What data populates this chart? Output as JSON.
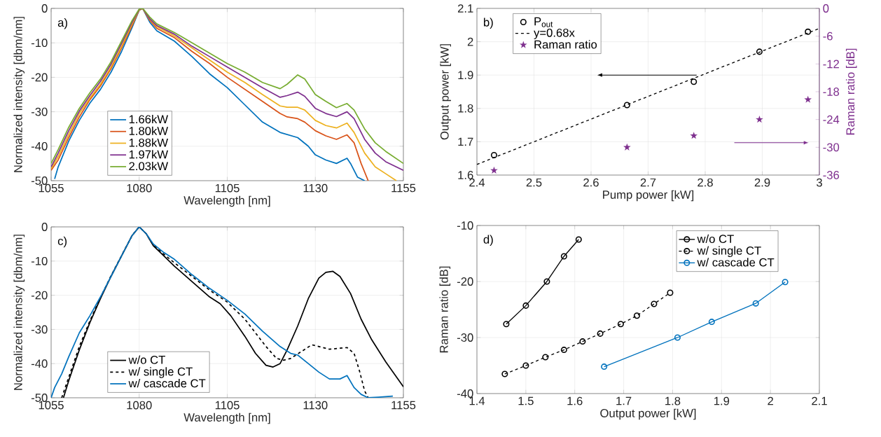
{
  "chart_data": [
    {
      "type": "line",
      "xlabel": "Wavelength [nm]",
      "ylabel": "Normalized intensity [dbm/nm]",
      "xlim": [
        1055,
        1155
      ],
      "ylim": [
        -50,
        0
      ],
      "xticks": [
        1055,
        1080,
        1105,
        1130,
        1155
      ],
      "yticks": [
        -50,
        -40,
        -30,
        -20,
        -10,
        0
      ],
      "grid": true,
      "legend": "bottom left",
      "annotations": [
        "a)"
      ],
      "series": [
        {
          "name": "1.66kW",
          "color": "#0072bd",
          "x": [
            1056,
            1057,
            1060,
            1063,
            1066,
            1069,
            1072,
            1075,
            1078,
            1080,
            1081,
            1083,
            1085,
            1090,
            1095,
            1100,
            1105,
            1110,
            1115,
            1120,
            1125,
            1128,
            1130,
            1133,
            1136,
            1139,
            1140,
            1142,
            1144
          ],
          "values": [
            -49.5,
            -46,
            -38.5,
            -32.5,
            -27.5,
            -23.5,
            -18.5,
            -12.5,
            -5.5,
            -0.5,
            0,
            -4,
            -6.5,
            -9.5,
            -14,
            -19,
            -23,
            -28,
            -33,
            -36,
            -37.5,
            -40,
            -42.5,
            -44,
            -45,
            -43.5,
            -45,
            -49,
            -50
          ]
        },
        {
          "name": "1.80kW",
          "color": "#d95319",
          "x": [
            1055,
            1057,
            1060,
            1063,
            1066,
            1069,
            1072,
            1075,
            1078,
            1080,
            1081,
            1083,
            1085,
            1090,
            1095,
            1100,
            1105,
            1110,
            1115,
            1120,
            1122,
            1125,
            1127,
            1130,
            1133,
            1136,
            1139,
            1141,
            1143,
            1145
          ],
          "values": [
            -47,
            -44,
            -37.5,
            -31.5,
            -26.5,
            -22.5,
            -17.5,
            -11.5,
            -5,
            -0.5,
            0,
            -3.5,
            -5.8,
            -8.5,
            -12.5,
            -16,
            -20,
            -23.5,
            -27,
            -30.5,
            -31.5,
            -32,
            -33,
            -35.5,
            -37,
            -38,
            -36.7,
            -39,
            -45,
            -50
          ]
        },
        {
          "name": "1.88kW",
          "color": "#edb120",
          "x": [
            1055,
            1057,
            1060,
            1063,
            1066,
            1069,
            1072,
            1075,
            1078,
            1080,
            1081,
            1083,
            1085,
            1090,
            1095,
            1100,
            1105,
            1110,
            1115,
            1120,
            1122,
            1125,
            1127,
            1130,
            1133,
            1136,
            1139,
            1141,
            1144,
            1147,
            1150,
            1153
          ],
          "values": [
            -46.5,
            -43,
            -36.5,
            -30.5,
            -26,
            -22,
            -17,
            -11,
            -4.5,
            -0.4,
            0,
            -3.2,
            -5.3,
            -8,
            -11.5,
            -15,
            -18.5,
            -21.5,
            -25,
            -28.3,
            -28.7,
            -28.7,
            -29.5,
            -32.5,
            -34,
            -34.7,
            -33.3,
            -36,
            -42,
            -46,
            -48,
            -50
          ]
        },
        {
          "name": "1.97kW",
          "color": "#7e2f8e",
          "x": [
            1055,
            1057,
            1060,
            1063,
            1066,
            1069,
            1072,
            1075,
            1078,
            1080,
            1081,
            1083,
            1085,
            1090,
            1095,
            1100,
            1105,
            1110,
            1115,
            1120,
            1122,
            1125,
            1127,
            1130,
            1133,
            1136,
            1139,
            1141,
            1144,
            1147,
            1150,
            1155
          ],
          "values": [
            -46,
            -42,
            -35.5,
            -29.8,
            -25.3,
            -21.2,
            -16.2,
            -10.2,
            -4,
            -0.3,
            0,
            -3,
            -5,
            -7.5,
            -11,
            -14,
            -17,
            -20,
            -23,
            -25.8,
            -25.3,
            -24.3,
            -25.5,
            -29,
            -30.5,
            -31.4,
            -30,
            -32,
            -38,
            -42,
            -44.5,
            -47
          ]
        },
        {
          "name": "2.03kW",
          "color": "#77ac30",
          "x": [
            1055,
            1057,
            1060,
            1063,
            1066,
            1069,
            1072,
            1075,
            1078,
            1080,
            1081,
            1083,
            1085,
            1090,
            1095,
            1100,
            1105,
            1110,
            1115,
            1120,
            1122,
            1125,
            1127,
            1130,
            1133,
            1136,
            1139,
            1141,
            1144,
            1147,
            1150,
            1155
          ],
          "values": [
            -45,
            -41,
            -34.5,
            -29,
            -24.5,
            -20.5,
            -15.5,
            -9.5,
            -3.5,
            -0.2,
            0,
            -2.5,
            -4.5,
            -7,
            -10,
            -13,
            -16,
            -18.5,
            -21.5,
            -23.3,
            -22,
            -19.3,
            -20.5,
            -25,
            -27,
            -28.8,
            -27.6,
            -29.5,
            -35,
            -39,
            -41.5,
            -45
          ]
        }
      ]
    },
    {
      "type": "scatter",
      "xlabel": "Pump power [kW]",
      "ylabel": "Output power [kW]",
      "y2label": "Raman ratio [dB]",
      "xlim": [
        2.4,
        3
      ],
      "ylim": [
        1.6,
        2.1
      ],
      "y2lim": [
        -36,
        0
      ],
      "xticks": [
        2.4,
        2.5,
        2.6,
        2.7,
        2.8,
        2.9,
        3
      ],
      "yticks": [
        1.6,
        1.7,
        1.8,
        1.9,
        2,
        2.1
      ],
      "y2ticks": [
        -36,
        -30,
        -24,
        -18,
        -12,
        -6,
        0
      ],
      "grid": true,
      "legend": "top left",
      "annotations": [
        "b)"
      ],
      "series": [
        {
          "name": "P$_{out}$",
          "color": "#000000",
          "marker": "circle",
          "x": [
            2.43,
            2.663,
            2.78,
            2.895,
            2.98
          ],
          "values": [
            1.66,
            1.81,
            1.88,
            1.97,
            2.03
          ]
        },
        {
          "name": "y=0.68x",
          "type": "line",
          "line_style": "dashed",
          "color": "#000000",
          "x": [
            2.4,
            3
          ],
          "values": [
            1.632,
            2.04
          ]
        },
        {
          "name": "Raman ratio",
          "axis": "y2",
          "marker": "star",
          "color": "#7e2f8e",
          "x": [
            2.43,
            2.663,
            2.78,
            2.895,
            2.98
          ],
          "values": [
            -35,
            -30,
            -27.5,
            -24,
            -19.7
          ]
        }
      ]
    },
    {
      "type": "line",
      "xlabel": "Wavelength [nm]",
      "ylabel": "Normalized intensity [dbm/nm]",
      "xlim": [
        1055,
        1155
      ],
      "ylim": [
        -50,
        0
      ],
      "xticks": [
        1055,
        1080,
        1105,
        1130,
        1155
      ],
      "yticks": [
        -50,
        -40,
        -30,
        -20,
        -10,
        0
      ],
      "grid": true,
      "legend": "bottom left",
      "annotations": [
        "c)"
      ],
      "series": [
        {
          "name": "w/o CT",
          "color": "#000000",
          "x": [
            1058.5,
            1060,
            1063,
            1066,
            1069,
            1072,
            1075,
            1078,
            1080,
            1082,
            1084,
            1087,
            1090,
            1095,
            1100,
            1103,
            1106,
            1110,
            1113,
            1116,
            1118,
            1120,
            1122,
            1125,
            1128,
            1131,
            1133,
            1135,
            1137,
            1140,
            1143,
            1146,
            1150,
            1155
          ],
          "values": [
            -50,
            -45,
            -36,
            -28,
            -21,
            -14.5,
            -8.5,
            -2.5,
            0,
            -2,
            -5.5,
            -8.5,
            -11.5,
            -16,
            -20.5,
            -22.5,
            -26,
            -32,
            -37,
            -40.5,
            -41,
            -40,
            -36,
            -29,
            -21,
            -15,
            -13.3,
            -13,
            -14.5,
            -19.5,
            -27,
            -33,
            -39.5,
            -46.8
          ]
        },
        {
          "name": "w/ single CT",
          "line_style": "dashed",
          "color": "#000000",
          "x": [
            1058,
            1060,
            1063,
            1066,
            1069,
            1072,
            1075,
            1078,
            1080,
            1082,
            1084,
            1087,
            1090,
            1095,
            1100,
            1105,
            1110,
            1113,
            1116,
            1119,
            1121,
            1123,
            1126,
            1129,
            1131,
            1134,
            1137,
            1139,
            1141,
            1142.5,
            1144,
            1145
          ],
          "values": [
            -50,
            -44,
            -35,
            -27.5,
            -20.7,
            -14.3,
            -8.4,
            -2.5,
            0,
            -2,
            -5.3,
            -8,
            -10.5,
            -14.5,
            -18.5,
            -22,
            -27,
            -31,
            -35,
            -38.5,
            -39,
            -38.5,
            -36.5,
            -34.5,
            -35,
            -35.8,
            -35.5,
            -35.3,
            -37,
            -42,
            -48,
            -50
          ]
        },
        {
          "name": "w/ cascade CT",
          "color": "#0072bd",
          "x": [
            1055,
            1056,
            1058,
            1060,
            1063,
            1066,
            1069,
            1072,
            1075,
            1078,
            1080,
            1082,
            1084,
            1087,
            1090,
            1095,
            1100,
            1105,
            1110,
            1115,
            1120,
            1123,
            1125,
            1128,
            1131,
            1134,
            1137,
            1139,
            1141,
            1143,
            1145,
            1148,
            1152
          ],
          "values": [
            -50,
            -47,
            -43,
            -38,
            -31,
            -26,
            -20.5,
            -14.5,
            -8.5,
            -2.5,
            0,
            -2,
            -5,
            -7.5,
            -9.5,
            -14,
            -18,
            -21.5,
            -25.5,
            -30.5,
            -35,
            -37,
            -37.5,
            -40,
            -42.5,
            -44.5,
            -44.5,
            -43.5,
            -47,
            -49,
            -50,
            -49.8,
            -49.5
          ]
        }
      ]
    },
    {
      "type": "line",
      "marker": "circle",
      "xlabel": "Output power [kW]",
      "ylabel": "Raman ratio [dB]",
      "xlim": [
        1.4,
        2.1
      ],
      "ylim": [
        -40,
        -10
      ],
      "xticks": [
        1.4,
        1.5,
        1.6,
        1.7,
        1.8,
        1.9,
        2,
        2.1
      ],
      "yticks": [
        -40,
        -30,
        -20,
        -10
      ],
      "grid": true,
      "legend": "top right",
      "annotations": [
        "d)"
      ],
      "series": [
        {
          "name": "w/o CT",
          "color": "#000000",
          "x": [
            1.46,
            1.5,
            1.543,
            1.578,
            1.608
          ],
          "values": [
            -27.6,
            -24.3,
            -20,
            -15.5,
            -12.5
          ]
        },
        {
          "name": "w/ single CT",
          "line_style": "dashed",
          "color": "#000000",
          "x": [
            1.457,
            1.5,
            1.54,
            1.578,
            1.616,
            1.652,
            1.694,
            1.727,
            1.762,
            1.795
          ],
          "values": [
            -36.5,
            -35,
            -33.5,
            -32.2,
            -30.7,
            -29.3,
            -27.6,
            -26.1,
            -24,
            -22
          ]
        },
        {
          "name": "w/ cascade CT",
          "color": "#0072bd",
          "x": [
            1.66,
            1.81,
            1.88,
            1.97,
            2.03
          ],
          "values": [
            -35.2,
            -30,
            -27.2,
            -23.9,
            -20.1
          ]
        }
      ]
    }
  ]
}
